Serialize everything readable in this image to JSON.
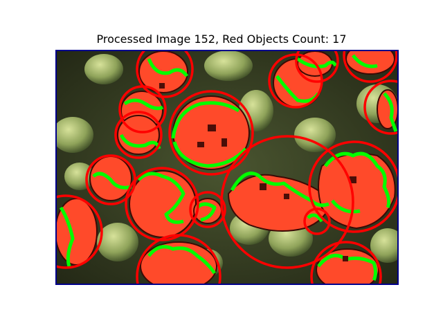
{
  "figure": {
    "title": "Processed Image 152, Red Objects Count: 17"
  },
  "image": {
    "description_icon": "processed-fruit-photo",
    "frame_color": "#00008b",
    "detection_circle_color": "#ff0000",
    "contour_color": "#00ff00",
    "object_fill_color": "#ff4a2a",
    "background_colors": [
      "#3b4a24",
      "#8fa35a",
      "#2a2a18"
    ],
    "red_objects_count": 17
  }
}
